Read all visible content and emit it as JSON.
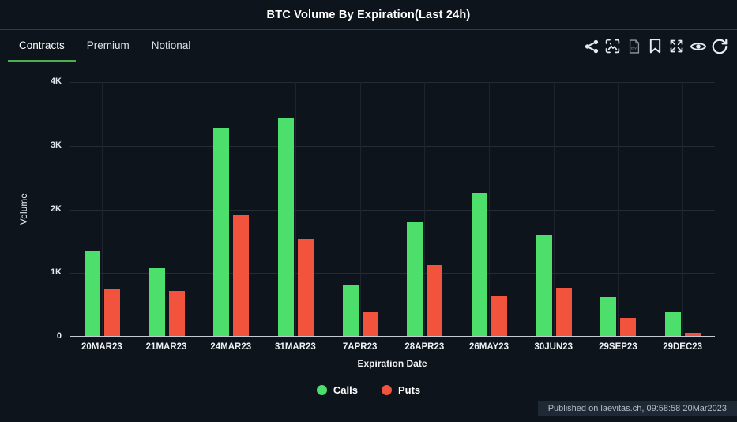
{
  "header": {
    "title": "BTC Volume By Expiration(Last 24h)"
  },
  "tabs": [
    {
      "label": "Contracts",
      "active": true
    },
    {
      "label": "Premium",
      "active": false
    },
    {
      "label": "Notional",
      "active": false
    }
  ],
  "toolbar": {
    "icons": [
      "share-icon",
      "image-export-icon",
      "csv-export-icon",
      "bookmark-icon",
      "fullscreen-icon",
      "eye-icon",
      "refresh-icon"
    ]
  },
  "chart_data": {
    "type": "bar",
    "title": "BTC Volume By Expiration(Last 24h)",
    "categories": [
      "20MAR23",
      "21MAR23",
      "24MAR23",
      "31MAR23",
      "7APR23",
      "28APR23",
      "26MAY23",
      "30JUN23",
      "29SEP23",
      "29DEC23"
    ],
    "series": [
      {
        "name": "Calls",
        "color": "#4cdf6c",
        "values": [
          1340,
          1070,
          3270,
          3420,
          800,
          1800,
          2240,
          1580,
          620,
          390
        ]
      },
      {
        "name": "Puts",
        "color": "#f2533d",
        "values": [
          730,
          700,
          1900,
          1520,
          390,
          1110,
          630,
          760,
          280,
          50
        ]
      }
    ],
    "xlabel": "Expiration Date",
    "ylabel": "Volume",
    "ylim": [
      0,
      4000
    ],
    "yticks": [
      "0",
      "1K",
      "2K",
      "3K",
      "4K"
    ],
    "grid": true,
    "legend_position": "bottom"
  },
  "footer": {
    "published": "Published on laevitas.ch, 09:58:58 20Mar2023"
  },
  "colors": {
    "background": "#0e141b",
    "accent_green": "#4caf50",
    "calls": "#4cdf6c",
    "puts": "#f2533d"
  }
}
